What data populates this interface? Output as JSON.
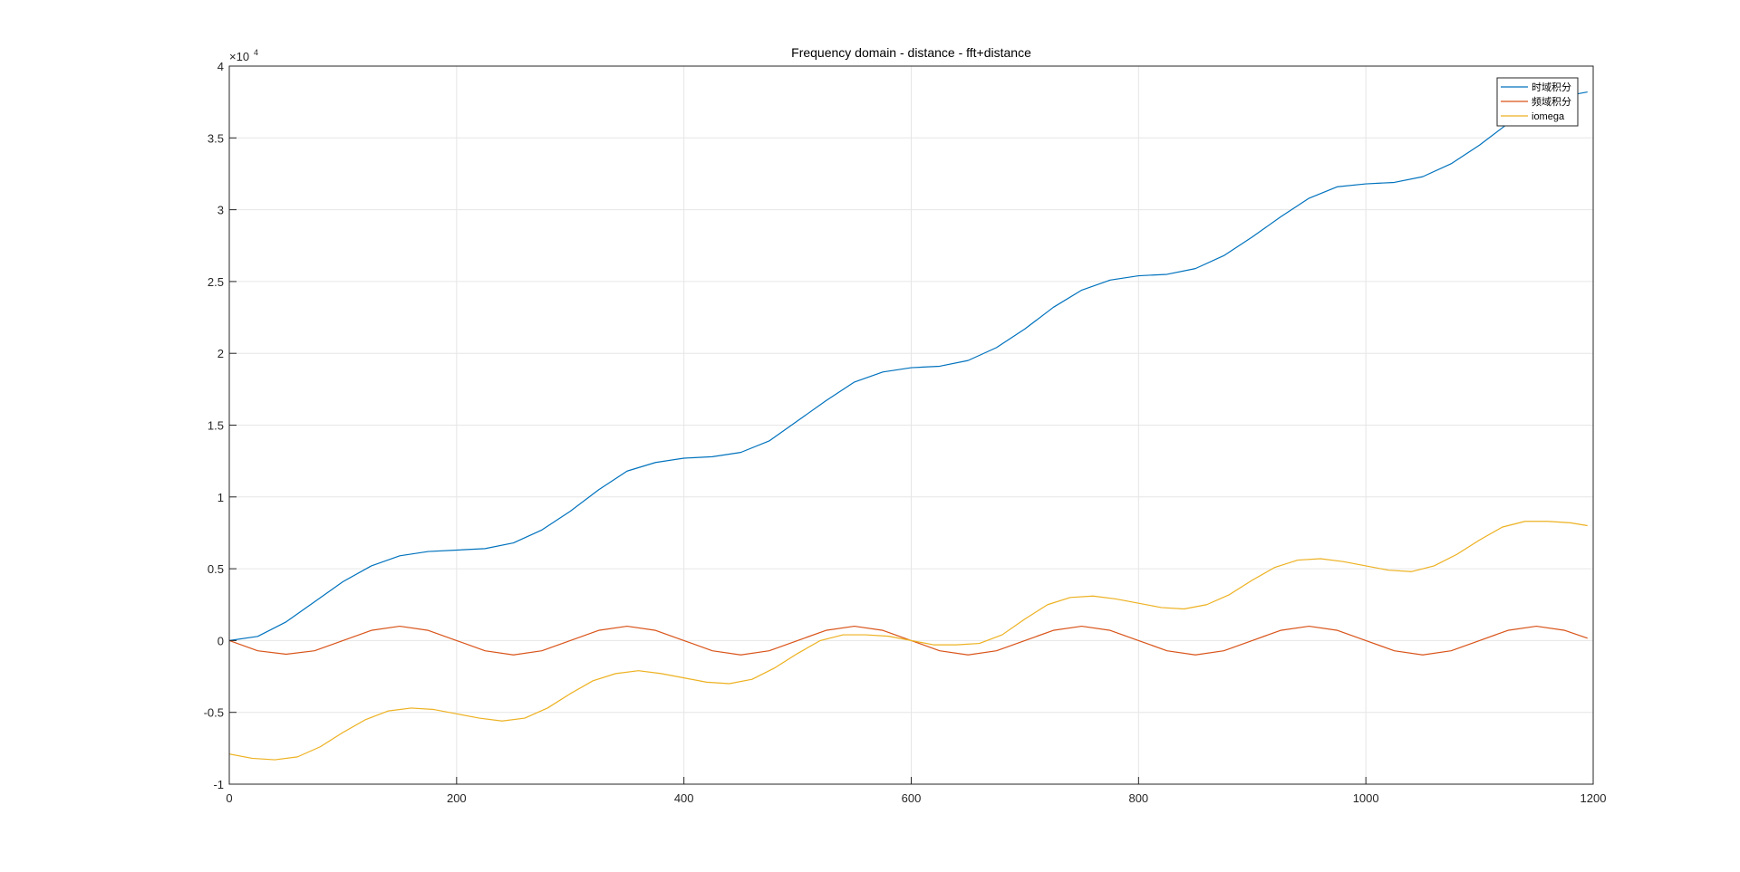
{
  "chart_data": {
    "type": "line",
    "title": "Frequency domain - distance - fft+distance",
    "xlabel": "",
    "ylabel": "",
    "xlim": [
      0,
      1200
    ],
    "ylim": [
      -10000,
      40000
    ],
    "x_ticks": [
      0,
      200,
      400,
      600,
      800,
      1000,
      1200
    ],
    "y_ticks": [
      -10000,
      -5000,
      0,
      5000,
      10000,
      15000,
      20000,
      25000,
      30000,
      35000,
      40000
    ],
    "x_tick_labels": [
      "0",
      "200",
      "400",
      "600",
      "800",
      "1000",
      "1200"
    ],
    "y_tick_labels": [
      "-1",
      "-0.5",
      "0",
      "0.5",
      "1",
      "1.5",
      "2",
      "2.5",
      "3",
      "3.5",
      "4"
    ],
    "y_exponent_label": {
      "base": "×10",
      "exp": "4"
    },
    "grid": true,
    "legend_position": "top-right",
    "series": [
      {
        "name": "时域积分",
        "color": "#0072BD",
        "x": [
          0,
          25,
          50,
          75,
          100,
          125,
          150,
          175,
          200,
          225,
          250,
          275,
          300,
          325,
          350,
          375,
          400,
          425,
          450,
          475,
          500,
          525,
          550,
          575,
          600,
          625,
          650,
          675,
          700,
          725,
          750,
          775,
          800,
          825,
          850,
          875,
          900,
          925,
          950,
          975,
          1000,
          1025,
          1050,
          1075,
          1100,
          1125,
          1150,
          1175,
          1195
        ],
        "y": [
          0,
          290,
          1300,
          2700,
          4100,
          5200,
          5900,
          6200,
          6300,
          6400,
          6800,
          7700,
          9000,
          10500,
          11800,
          12400,
          12700,
          12800,
          13100,
          13900,
          15300,
          16700,
          18000,
          18700,
          19000,
          19100,
          19500,
          20400,
          21700,
          23200,
          24400,
          25100,
          25400,
          25500,
          25900,
          26800,
          28100,
          29500,
          30800,
          31600,
          31800,
          31900,
          32300,
          33200,
          34500,
          36000,
          37200,
          37900,
          38200
        ]
      },
      {
        "name": "频域积分",
        "color": "#D95319",
        "x": [
          0,
          25,
          50,
          75,
          100,
          125,
          150,
          175,
          200,
          225,
          250,
          275,
          300,
          325,
          350,
          375,
          400,
          425,
          450,
          475,
          500,
          525,
          550,
          575,
          600,
          625,
          650,
          675,
          700,
          725,
          750,
          775,
          800,
          825,
          850,
          875,
          900,
          925,
          950,
          975,
          1000,
          1025,
          1050,
          1075,
          1100,
          1125,
          1150,
          1175,
          1195
        ],
        "y": [
          0,
          -710,
          -950,
          -710,
          0,
          710,
          1000,
          710,
          0,
          -710,
          -1000,
          -710,
          0,
          710,
          1000,
          710,
          0,
          -710,
          -1000,
          -710,
          0,
          710,
          1000,
          710,
          0,
          -710,
          -1000,
          -710,
          0,
          710,
          1000,
          710,
          0,
          -710,
          -1000,
          -710,
          0,
          710,
          1000,
          710,
          0,
          -710,
          -1000,
          -710,
          0,
          710,
          1000,
          710,
          160
        ]
      },
      {
        "name": "iomega",
        "color": "#EDB120",
        "x": [
          0,
          20,
          40,
          60,
          80,
          100,
          120,
          140,
          160,
          180,
          200,
          220,
          240,
          260,
          280,
          300,
          320,
          340,
          360,
          380,
          400,
          420,
          440,
          460,
          480,
          500,
          520,
          540,
          560,
          580,
          600,
          620,
          640,
          660,
          680,
          700,
          720,
          740,
          760,
          780,
          800,
          820,
          840,
          860,
          880,
          900,
          920,
          940,
          960,
          980,
          1000,
          1020,
          1040,
          1060,
          1080,
          1100,
          1120,
          1140,
          1160,
          1180,
          1195
        ],
        "y": [
          -7900,
          -8200,
          -8300,
          -8100,
          -7400,
          -6400,
          -5500,
          -4900,
          -4700,
          -4800,
          -5100,
          -5400,
          -5600,
          -5400,
          -4700,
          -3700,
          -2800,
          -2300,
          -2100,
          -2300,
          -2600,
          -2900,
          -3000,
          -2700,
          -1900,
          -900,
          0,
          400,
          400,
          300,
          0,
          -300,
          -300,
          -200,
          400,
          1500,
          2500,
          3000,
          3100,
          2900,
          2600,
          2300,
          2200,
          2500,
          3200,
          4200,
          5100,
          5600,
          5700,
          5500,
          5200,
          4900,
          4800,
          5200,
          6000,
          7000,
          7900,
          8300,
          8300,
          8200,
          8000
        ]
      }
    ]
  }
}
